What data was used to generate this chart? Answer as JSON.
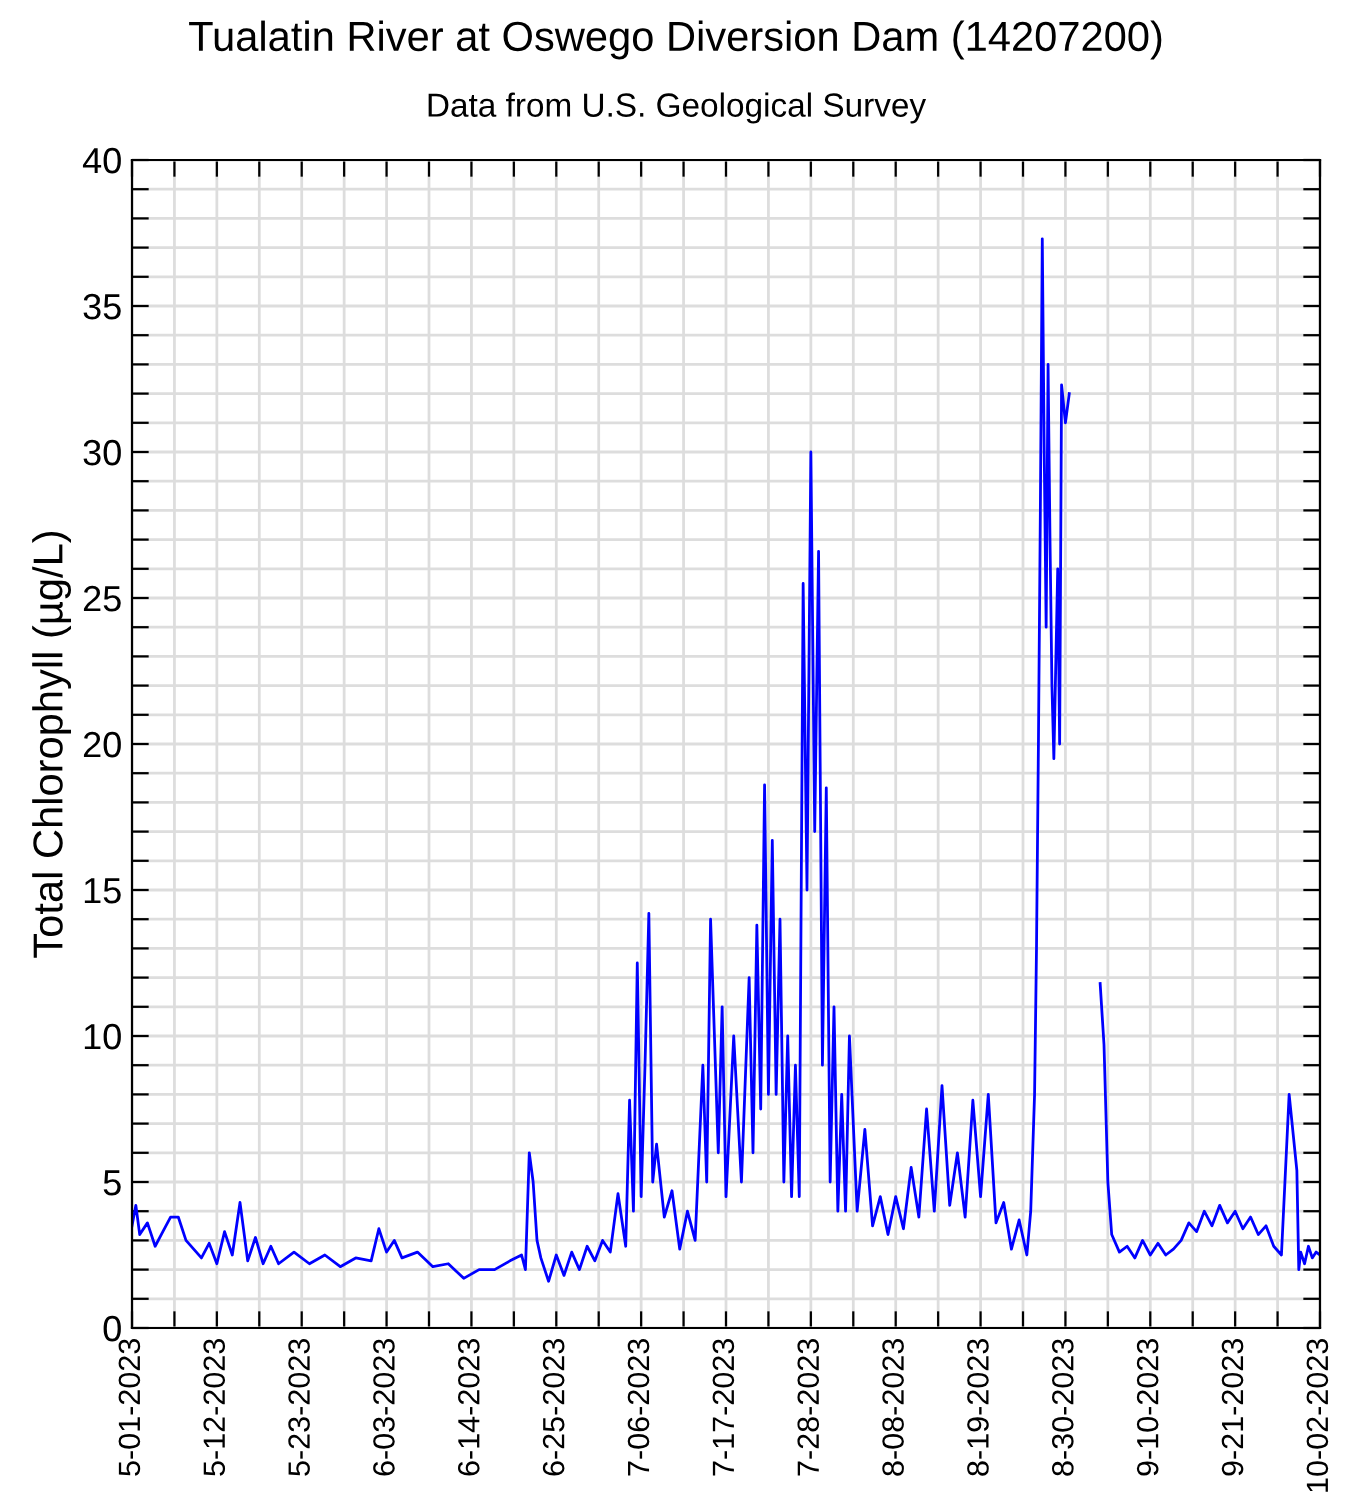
{
  "chart_data": {
    "type": "line",
    "title": "Tualatin River at Oswego Diversion Dam (14207200)",
    "subtitle": "Data from U.S. Geological Survey",
    "ylabel": "Total Chlorophyll (µg/L)",
    "xlim": [
      "2023-05-01",
      "2023-10-02"
    ],
    "ylim": [
      0,
      40
    ],
    "xticks": [
      {
        "value": "2023-05-01",
        "label": "5-01-2023"
      },
      {
        "value": "2023-05-06T12:00",
        "label": null
      },
      {
        "value": "2023-05-12",
        "label": "5-12-2023"
      },
      {
        "value": "2023-05-17T12:00",
        "label": null
      },
      {
        "value": "2023-05-23",
        "label": "5-23-2023"
      },
      {
        "value": "2023-05-28T12:00",
        "label": null
      },
      {
        "value": "2023-06-03",
        "label": "6-03-2023"
      },
      {
        "value": "2023-06-08T12:00",
        "label": null
      },
      {
        "value": "2023-06-14",
        "label": "6-14-2023"
      },
      {
        "value": "2023-06-19T12:00",
        "label": null
      },
      {
        "value": "2023-06-25",
        "label": "6-25-2023"
      },
      {
        "value": "2023-06-30T12:00",
        "label": null
      },
      {
        "value": "2023-07-06",
        "label": "7-06-2023"
      },
      {
        "value": "2023-07-11T12:00",
        "label": null
      },
      {
        "value": "2023-07-17",
        "label": "7-17-2023"
      },
      {
        "value": "2023-07-22T12:00",
        "label": null
      },
      {
        "value": "2023-07-28",
        "label": "7-28-2023"
      },
      {
        "value": "2023-08-02T12:00",
        "label": null
      },
      {
        "value": "2023-08-08",
        "label": "8-08-2023"
      },
      {
        "value": "2023-08-13T12:00",
        "label": null
      },
      {
        "value": "2023-08-19",
        "label": "8-19-2023"
      },
      {
        "value": "2023-08-24T12:00",
        "label": null
      },
      {
        "value": "2023-08-30",
        "label": "8-30-2023"
      },
      {
        "value": "2023-09-04T12:00",
        "label": null
      },
      {
        "value": "2023-09-10",
        "label": "9-10-2023"
      },
      {
        "value": "2023-09-15T12:00",
        "label": null
      },
      {
        "value": "2023-09-21",
        "label": "9-21-2023"
      },
      {
        "value": "2023-09-26T12:00",
        "label": null
      },
      {
        "value": "2023-10-02",
        "label": "10-02-2023"
      }
    ],
    "yticks": [
      0,
      {
        "value": 1,
        "label": null
      },
      {
        "value": 2,
        "label": null
      },
      {
        "value": 3,
        "label": null
      },
      {
        "value": 4,
        "label": null
      },
      5,
      {
        "value": 6,
        "label": null
      },
      {
        "value": 7,
        "label": null
      },
      {
        "value": 8,
        "label": null
      },
      {
        "value": 9,
        "label": null
      },
      10,
      {
        "value": 11,
        "label": null
      },
      {
        "value": 12,
        "label": null
      },
      {
        "value": 13,
        "label": null
      },
      {
        "value": 14,
        "label": null
      },
      15,
      {
        "value": 16,
        "label": null
      },
      {
        "value": 17,
        "label": null
      },
      {
        "value": 18,
        "label": null
      },
      {
        "value": 19,
        "label": null
      },
      20,
      {
        "value": 21,
        "label": null
      },
      {
        "value": 22,
        "label": null
      },
      {
        "value": 23,
        "label": null
      },
      {
        "value": 24,
        "label": null
      },
      25,
      {
        "value": 26,
        "label": null
      },
      {
        "value": 27,
        "label": null
      },
      {
        "value": 28,
        "label": null
      },
      {
        "value": 29,
        "label": null
      },
      30,
      {
        "value": 31,
        "label": null
      },
      {
        "value": 32,
        "label": null
      },
      {
        "value": 33,
        "label": null
      },
      {
        "value": 34,
        "label": null
      },
      35,
      {
        "value": 36,
        "label": null
      },
      {
        "value": 37,
        "label": null
      },
      {
        "value": 38,
        "label": null
      },
      {
        "value": 39,
        "label": null
      },
      40
    ],
    "grid": true,
    "legend": false,
    "marker": "none",
    "line_style": "solid",
    "series": [
      {
        "color": "#0000ff",
        "x": [
          "2023-05-01",
          "2023-05-01T12:00",
          "2023-05-02",
          "2023-05-03",
          "2023-05-04",
          "2023-05-05",
          "2023-05-06",
          "2023-05-07",
          "2023-05-08",
          "2023-05-09",
          "2023-05-10",
          "2023-05-11",
          "2023-05-12",
          "2023-05-13",
          "2023-05-14",
          "2023-05-15",
          "2023-05-16",
          "2023-05-17",
          "2023-05-18",
          "2023-05-19",
          "2023-05-20",
          "2023-05-22",
          "2023-05-24",
          "2023-05-26",
          "2023-05-28",
          "2023-05-30",
          "2023-06-01",
          "2023-06-02",
          "2023-06-03",
          "2023-06-04",
          "2023-06-05",
          "2023-06-07",
          "2023-06-09",
          "2023-06-11",
          "2023-06-13",
          "2023-06-15",
          "2023-06-17",
          "2023-06-19",
          "2023-06-20T12:00",
          "2023-06-21",
          "2023-06-21T12:00",
          "2023-06-22",
          "2023-06-22T12:00",
          "2023-06-23",
          "2023-06-24",
          "2023-06-25",
          "2023-06-26",
          "2023-06-27",
          "2023-06-28",
          "2023-06-29",
          "2023-06-30",
          "2023-07-01",
          "2023-07-02",
          "2023-07-03",
          "2023-07-04",
          "2023-07-04T12:00",
          "2023-07-05",
          "2023-07-05T12:00",
          "2023-07-06",
          "2023-07-06T12:00",
          "2023-07-07",
          "2023-07-07T12:00",
          "2023-07-08",
          "2023-07-09",
          "2023-07-10",
          "2023-07-11",
          "2023-07-12",
          "2023-07-13",
          "2023-07-14",
          "2023-07-14T12:00",
          "2023-07-15",
          "2023-07-16",
          "2023-07-16T12:00",
          "2023-07-17",
          "2023-07-18",
          "2023-07-19",
          "2023-07-20",
          "2023-07-20T12:00",
          "2023-07-21",
          "2023-07-21T12:00",
          "2023-07-22",
          "2023-07-22T12:00",
          "2023-07-23",
          "2023-07-23T12:00",
          "2023-07-24",
          "2023-07-24T12:00",
          "2023-07-25",
          "2023-07-25T12:00",
          "2023-07-26",
          "2023-07-26T12:00",
          "2023-07-27",
          "2023-07-27T12:00",
          "2023-07-28",
          "2023-07-28T12:00",
          "2023-07-29",
          "2023-07-29T12:00",
          "2023-07-30",
          "2023-07-30T12:00",
          "2023-07-31",
          "2023-07-31T12:00",
          "2023-08-01",
          "2023-08-01T12:00",
          "2023-08-02",
          "2023-08-03",
          "2023-08-04",
          "2023-08-05",
          "2023-08-06",
          "2023-08-07",
          "2023-08-08",
          "2023-08-09",
          "2023-08-10",
          "2023-08-11",
          "2023-08-12",
          "2023-08-13",
          "2023-08-14",
          "2023-08-15",
          "2023-08-16",
          "2023-08-17",
          "2023-08-18",
          "2023-08-19",
          "2023-08-20",
          "2023-08-21",
          "2023-08-22",
          "2023-08-23",
          "2023-08-24",
          "2023-08-25",
          "2023-08-25T12:00",
          "2023-08-26",
          "2023-08-26T06:00",
          "2023-08-26T12:00",
          "2023-08-26T18:00",
          "2023-08-27",
          "2023-08-27T06:00",
          "2023-08-27T12:00",
          "2023-08-27T18:00",
          "2023-08-28",
          "2023-08-28T06:00",
          "2023-08-28T12:00",
          "2023-08-29",
          "2023-08-29T06:00",
          "2023-08-29T12:00",
          "2023-08-30",
          "2023-08-30T12:00",
          "2023-08-31",
          "2023-09-03T12:00",
          "2023-09-04",
          "2023-09-04T12:00",
          "2023-09-05",
          "2023-09-06",
          "2023-09-07",
          "2023-09-08",
          "2023-09-09",
          "2023-09-10",
          "2023-09-11",
          "2023-09-12",
          "2023-09-13",
          "2023-09-14",
          "2023-09-15",
          "2023-09-16",
          "2023-09-17",
          "2023-09-18",
          "2023-09-19",
          "2023-09-20",
          "2023-09-21",
          "2023-09-22",
          "2023-09-23",
          "2023-09-24",
          "2023-09-25",
          "2023-09-26",
          "2023-09-27",
          "2023-09-28",
          "2023-09-29",
          "2023-09-29T06:00",
          "2023-09-29T12:00",
          "2023-09-30",
          "2023-09-30T12:00",
          "2023-10-01",
          "2023-10-01T12:00",
          "2023-10-02"
        ],
        "values": [
          3.5,
          4.2,
          3.2,
          3.6,
          2.8,
          3.3,
          3.8,
          3.8,
          3.0,
          2.7,
          2.4,
          2.9,
          2.2,
          3.3,
          2.5,
          4.3,
          2.3,
          3.1,
          2.2,
          2.8,
          2.2,
          2.6,
          2.2,
          2.5,
          2.1,
          2.4,
          2.3,
          3.4,
          2.6,
          3.0,
          2.4,
          2.6,
          2.1,
          2.2,
          1.7,
          2.0,
          2.0,
          2.3,
          2.5,
          2.0,
          6.0,
          5.0,
          3.0,
          2.4,
          1.6,
          2.5,
          1.8,
          2.6,
          2.0,
          2.8,
          2.3,
          3.0,
          2.6,
          4.6,
          2.8,
          7.8,
          4.0,
          12.5,
          4.5,
          9.0,
          14.2,
          5.0,
          6.3,
          3.8,
          4.7,
          2.7,
          4.0,
          3.0,
          9.0,
          5.0,
          14.0,
          6.0,
          11.0,
          4.5,
          10.0,
          5.0,
          12.0,
          6.0,
          13.8,
          7.5,
          18.6,
          8.0,
          16.7,
          8.0,
          14.0,
          5.0,
          10.0,
          4.5,
          9.0,
          4.5,
          25.5,
          15.0,
          30.0,
          17.0,
          26.6,
          9.0,
          18.5,
          5.0,
          11.0,
          4.0,
          8.0,
          4.0,
          10.0,
          4.0,
          6.8,
          3.5,
          4.5,
          3.2,
          4.5,
          3.4,
          5.5,
          3.8,
          7.5,
          4.0,
          8.3,
          4.2,
          6.0,
          3.8,
          7.8,
          4.5,
          8.0,
          3.6,
          4.3,
          2.7,
          3.7,
          2.5,
          4.0,
          8.0,
          13.0,
          20.0,
          28.0,
          37.3,
          30.0,
          24.0,
          33.0,
          27.0,
          22.0,
          19.5,
          26.0,
          20.0,
          32.3,
          31.0,
          32.0,
          null,
          11.8,
          9.7,
          5.0,
          3.2,
          2.6,
          2.8,
          2.4,
          3.0,
          2.5,
          2.9,
          2.5,
          2.7,
          3.0,
          3.6,
          3.3,
          4.0,
          3.5,
          4.2,
          3.6,
          4.0,
          3.4,
          3.8,
          3.2,
          3.5,
          2.8,
          2.5,
          8.0,
          5.4,
          2.0,
          2.6,
          2.2,
          2.8,
          2.4,
          2.6,
          2.5
        ]
      }
    ]
  }
}
